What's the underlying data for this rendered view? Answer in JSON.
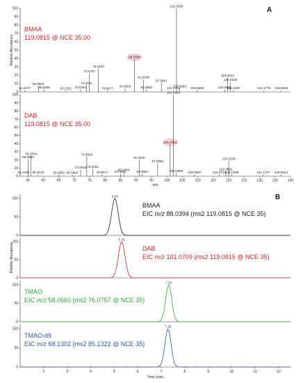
{
  "colors": {
    "red": "#d2232a",
    "green": "#2ea836",
    "blue": "#2b55a0",
    "black": "#1a1a1a",
    "highlight": "#f2c6cc"
  },
  "panel_letters": {
    "a": "A",
    "b": "B"
  },
  "chart_data": [
    {
      "type": "bar",
      "panel": "A",
      "name_label": "BMAA",
      "precursor_label": "119.0815 @ NCE 35.00",
      "ylabel": "Relative Abundance",
      "xlim": [
        50,
        140
      ],
      "ylim": [
        0,
        100
      ],
      "yticks": [
        0,
        10,
        20,
        30,
        40,
        50,
        60,
        70,
        80,
        90,
        100
      ],
      "highlighted": 88.0399,
      "peaks": [
        {
          "mz": 51.5477,
          "rel": 2,
          "label": "51.5477"
        },
        {
          "mz": 56.0503,
          "rel": 7,
          "label": "56.0503"
        },
        {
          "mz": 58.0296,
          "rel": 3,
          "label": "58.0296"
        },
        {
          "mz": 65.2351,
          "rel": 1.5,
          "label": "65.2351"
        },
        {
          "mz": 70.0294,
          "rel": 3,
          "label": "70.0294"
        },
        {
          "mz": 72.0815,
          "rel": 8,
          "label": "72.0815"
        },
        {
          "mz": 73.0767,
          "rel": 22,
          "label": "73.0767"
        },
        {
          "mz": 76.04,
          "rel": 28,
          "label": "76.0400"
        },
        {
          "mz": 78.9977,
          "rel": 1.5,
          "label": "78.9977"
        },
        {
          "mz": 84.9604,
          "rel": 4,
          "label": "84.9604"
        },
        {
          "mz": 88.0399,
          "rel": 39,
          "label": "88.0399"
        },
        {
          "mz": 91.0548,
          "rel": 15,
          "label": "91.0548"
        },
        {
          "mz": 92.0583,
          "rel": 3,
          "label": "92.0583"
        },
        {
          "mz": 97.0081,
          "rel": 11,
          "label": "97.0081"
        },
        {
          "mz": 101.071,
          "rel": 2,
          "label": "101.0710"
        },
        {
          "mz": 102.0554,
          "rel": 100,
          "label": "102.0554"
        },
        {
          "mz": 103.0589,
          "rel": 4,
          "label": "103.0589"
        },
        {
          "mz": 108.9585,
          "rel": 2,
          "label": "108.9585"
        },
        {
          "mz": 118.0861,
          "rel": 3,
          "label": "118.0861"
        },
        {
          "mz": 119.0812,
          "rel": 17,
          "label": "119.0812"
        },
        {
          "mz": 120.0238,
          "rel": 12,
          "label": "120.0238"
        },
        {
          "mz": 121.0397,
          "rel": 2,
          "label": "121.0397"
        },
        {
          "mz": 131.1779,
          "rel": 2,
          "label": "131.1779"
        },
        {
          "mz": 136.9535,
          "rel": 2,
          "label": "136.9535"
        }
      ]
    },
    {
      "type": "bar",
      "panel": "A",
      "name_label": "DAB",
      "precursor_label": "119.0815 @ NCE 35.00",
      "xlabel": "m/z",
      "xlim": [
        52.5,
        140
      ],
      "xticks": [
        55,
        60,
        65,
        70,
        75,
        80,
        85,
        90,
        95,
        100,
        105,
        110,
        115,
        120,
        125,
        130,
        135,
        140
      ],
      "xtick_labels": [
        "55",
        "60",
        "65",
        "70",
        "75",
        "80",
        "85",
        "90",
        "95",
        "100",
        "105",
        "110",
        "115",
        "120",
        "125",
        "130",
        "135",
        "140"
      ],
      "ylim": [
        0,
        100
      ],
      "yticks": [
        0,
        10,
        20,
        30,
        40,
        50,
        60,
        70,
        80,
        90,
        100
      ],
      "highlighted": 101.0714,
      "peaks": [
        {
          "mz": 51.4153,
          "rel": 2,
          "label": "51.4153"
        },
        {
          "mz": 55.055,
          "rel": 21,
          "label": "55.0550"
        },
        {
          "mz": 56.0504,
          "rel": 25,
          "label": "56.0504"
        },
        {
          "mz": 58.3019,
          "rel": 2,
          "label": "58.3019"
        },
        {
          "mz": 65.0683,
          "rel": 1.5,
          "label": "65.0683"
        },
        {
          "mz": 69.3844,
          "rel": 1.5,
          "label": "69.3844"
        },
        {
          "mz": 72.0816,
          "rel": 8,
          "label": "72.0816"
        },
        {
          "mz": 74.0606,
          "rel": 24,
          "label": "74.0606"
        },
        {
          "mz": 76.0401,
          "rel": 9,
          "label": "76.0401"
        },
        {
          "mz": 78.9977,
          "rel": 2,
          "label": "78.9977"
        },
        {
          "mz": 84.9604,
          "rel": 3,
          "label": "84.9604"
        },
        {
          "mz": 86.04,
          "rel": 5,
          "label": "86.0400"
        },
        {
          "mz": 91.0548,
          "rel": 20,
          "label": "91.0548"
        },
        {
          "mz": 92.0582,
          "rel": 3,
          "label": "92.0582"
        },
        {
          "mz": 97.0082,
          "rel": 16,
          "label": "97.0082"
        },
        {
          "mz": 101.0714,
          "rel": 39,
          "label": "101.0714"
        },
        {
          "mz": 102.0555,
          "rel": 100,
          "label": "102.0555"
        },
        {
          "mz": 103.0589,
          "rel": 4,
          "label": "103.0589"
        },
        {
          "mz": 108.9587,
          "rel": 2,
          "label": "108.9587"
        },
        {
          "mz": 116.9723,
          "rel": 2,
          "label": "116.9723"
        },
        {
          "mz": 119.0822,
          "rel": 6,
          "label": "119.0822"
        },
        {
          "mz": 120.0239,
          "rel": 19,
          "label": "120.0239"
        },
        {
          "mz": 121.0399,
          "rel": 2,
          "label": "121.0399"
        },
        {
          "mz": 131.1737,
          "rel": 2,
          "label": "131.1737"
        },
        {
          "mz": 136.9533,
          "rel": 2,
          "label": "136.9533"
        }
      ]
    },
    {
      "type": "line",
      "panel": "B",
      "ylabel": "Relative Abundance",
      "xlabel": "Time (min)",
      "xlim": [
        1,
        12.5
      ],
      "xticks": [
        2,
        3,
        4,
        5,
        6,
        7,
        8,
        9,
        10,
        11,
        12
      ],
      "xtick_labels": [
        "2",
        "3",
        "4",
        "5",
        "6",
        "7",
        "8",
        "9",
        "10",
        "11",
        "12"
      ],
      "ylim": [
        0,
        100
      ],
      "yticks": [
        0,
        50,
        100
      ],
      "series": [
        {
          "name": "BMAA",
          "eic_prefix": "EIC ",
          "eic_italic": "m/z",
          "eic_text": " 88.0394 (ms2 119.0815 @ NCE 35)",
          "rt": 5.03,
          "rt_label": "5.03",
          "width": 0.14,
          "color_key": "black"
        },
        {
          "name": "DAB",
          "eic_prefix": "EIC ",
          "eic_italic": "m/z",
          "eic_text": " 101.0709 (ms2 119.0815 @ NCE 35)",
          "rt": 5.32,
          "rt_label": "5.32",
          "width": 0.14,
          "color_key": "red"
        },
        {
          "name": "TMAO",
          "eic_prefix": "EIC ",
          "eic_italic": "m/z",
          "eic_text": " 58.0660 (ms2 76.0757 @ NCE 35)",
          "rt": 7.32,
          "rt_label": "7.32",
          "width": 0.13,
          "color_key": "green"
        },
        {
          "name": "TMAO-d9",
          "eic_prefix": "EIC ",
          "eic_italic": "m/z",
          "eic_text": " 68.1302 (ms2 85.1322 @ NCE 35)",
          "rt": 7.29,
          "rt_label": "7.29",
          "width": 0.13,
          "color_key": "blue"
        }
      ]
    }
  ]
}
